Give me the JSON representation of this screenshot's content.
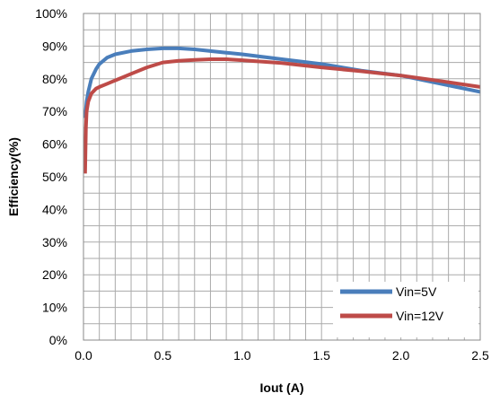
{
  "chart_data": {
    "type": "line",
    "title": "",
    "xlabel": "Iout (A)",
    "ylabel": "Efficiency(%)",
    "xlim": [
      0,
      2.5
    ],
    "ylim": [
      0,
      100
    ],
    "x_ticks": [
      "0.0",
      "0.5",
      "1.0",
      "1.5",
      "2.0",
      "2.5"
    ],
    "y_ticks": [
      "0%",
      "10%",
      "20%",
      "30%",
      "40%",
      "50%",
      "60%",
      "70%",
      "80%",
      "90%",
      "100%"
    ],
    "grid": true,
    "legend_position": "bottom-right",
    "series": [
      {
        "name": "Vin=5V",
        "color": "#4a7ebb",
        "x": [
          0.01,
          0.02,
          0.03,
          0.05,
          0.08,
          0.1,
          0.15,
          0.2,
          0.3,
          0.4,
          0.5,
          0.6,
          0.7,
          0.8,
          0.9,
          1.0,
          1.25,
          1.5,
          1.75,
          2.0,
          2.25,
          2.5
        ],
        "y": [
          68,
          73,
          76,
          80,
          83,
          84.5,
          86.5,
          87.5,
          88.5,
          89,
          89.3,
          89.3,
          89,
          88.5,
          88,
          87.5,
          86,
          84.5,
          82.5,
          81,
          78.5,
          76
        ]
      },
      {
        "name": "Vin=12V",
        "color": "#be4b48",
        "x": [
          0.01,
          0.015,
          0.02,
          0.03,
          0.05,
          0.08,
          0.1,
          0.15,
          0.2,
          0.3,
          0.4,
          0.5,
          0.6,
          0.7,
          0.8,
          0.9,
          1.0,
          1.25,
          1.5,
          1.75,
          2.0,
          2.25,
          2.5
        ],
        "y": [
          51,
          65,
          70,
          73,
          75.5,
          77,
          77.5,
          78.5,
          79.5,
          81.5,
          83.5,
          85,
          85.5,
          85.8,
          86,
          86,
          85.7,
          84.8,
          83.5,
          82.3,
          81,
          79.3,
          77.5
        ]
      }
    ]
  }
}
